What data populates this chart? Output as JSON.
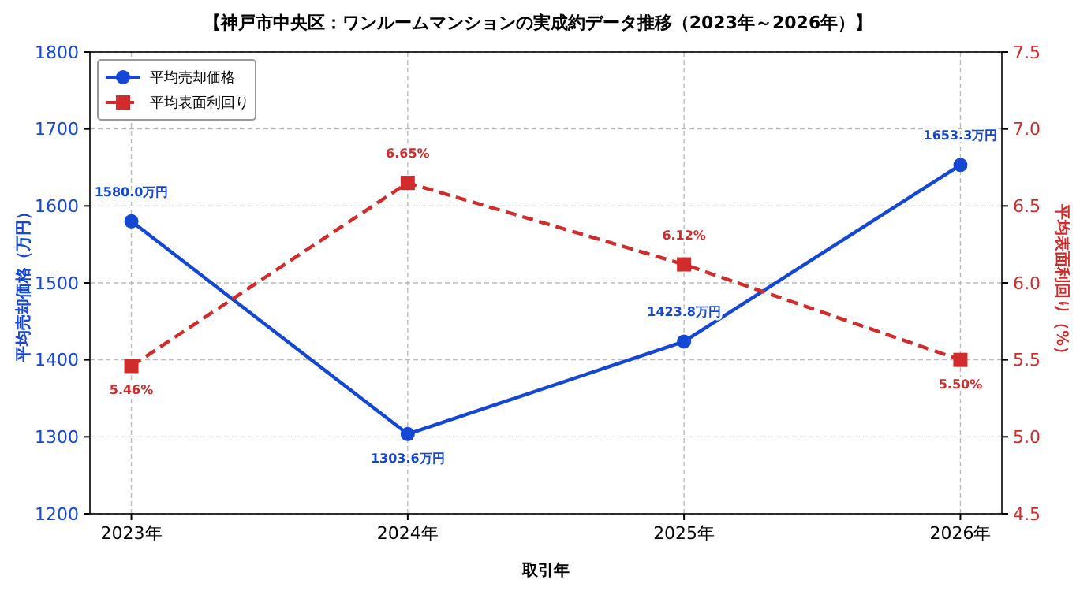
{
  "chart_data": {
    "type": "line",
    "title": "【神戸市中央区：ワンルームマンションの実成約データ推移（2023年～2026年）】",
    "xlabel": "取引年",
    "ylabel": "平均売却価格（万円）",
    "y2label": "平均表面利回り（%）",
    "categories": [
      "2023年",
      "2024年",
      "2025年",
      "2026年"
    ],
    "series": [
      {
        "name": "平均売却価格",
        "color": "#1447d4",
        "values": [
          1580.0,
          1303.6,
          1423.8,
          1653.3
        ],
        "value_labels": [
          "1580.0万円",
          "1303.6万円",
          "1423.8万円",
          "1653.3万円"
        ],
        "marker": "circle",
        "line_style": "solid"
      },
      {
        "name": "平均表面利回り",
        "color": "#d12b2b",
        "values": [
          5.46,
          6.65,
          6.12,
          5.5
        ],
        "value_labels": [
          "5.46%",
          "6.65%",
          "6.12%",
          "5.50%"
        ],
        "marker": "square",
        "line_style": "dashed",
        "axis": "y2"
      }
    ],
    "ylim": [
      1200,
      1800
    ],
    "yticks": [
      1200,
      1300,
      1400,
      1500,
      1600,
      1700,
      1800
    ],
    "y2lim": [
      4.5,
      7.5
    ],
    "y2ticks": [
      4.5,
      {
        "value": 5,
        "label": "5.0"
      },
      5.5,
      {
        "value": 6,
        "label": "6.0"
      },
      6.5,
      {
        "value": 7,
        "label": "7.0"
      },
      7.5
    ],
    "grid": true,
    "legend": "top left"
  }
}
